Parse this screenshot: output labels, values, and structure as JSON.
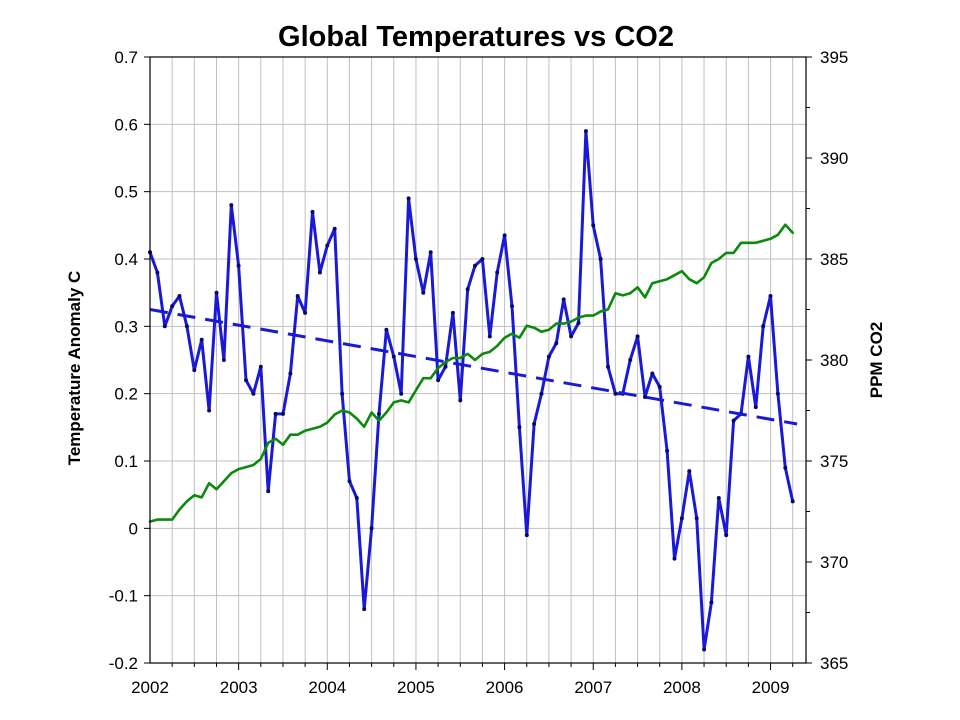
{
  "chart_data": {
    "type": "line",
    "title": "Global Temperatures vs CO2",
    "ylabel_left": "Temperature Anomaly C",
    "ylabel_right": "PPM CO2",
    "xlabel": "",
    "xlim": [
      2002,
      2009.4
    ],
    "ylim_left": [
      -0.2,
      0.7
    ],
    "ylim_right": [
      365,
      395
    ],
    "x_ticks": [
      "2002",
      "2003",
      "2004",
      "2005",
      "2006",
      "2007",
      "2008",
      "2009"
    ],
    "y_left_ticks": [
      "-0.2",
      "-0.1",
      "0",
      "0.1",
      "0.2",
      "0.3",
      "0.4",
      "0.5",
      "0.6",
      "0.7"
    ],
    "y_right_ticks": [
      "365",
      "370",
      "375",
      "380",
      "385",
      "390",
      "395"
    ],
    "grid": true,
    "series": [
      {
        "axis": "left",
        "color": "#1a1ad6",
        "style": "solid-markers",
        "x_start": 2002.0,
        "x_step_months": 1,
        "values": [
          0.41,
          0.38,
          0.3,
          0.33,
          0.345,
          0.3,
          0.235,
          0.28,
          0.175,
          0.35,
          0.25,
          0.48,
          0.39,
          0.22,
          0.2,
          0.24,
          0.055,
          0.17,
          0.17,
          0.23,
          0.345,
          0.32,
          0.47,
          0.38,
          0.42,
          0.445,
          0.2,
          0.07,
          0.045,
          -0.12,
          0.0,
          0.17,
          0.295,
          0.255,
          0.2,
          0.49,
          0.4,
          0.35,
          0.41,
          0.22,
          0.24,
          0.32,
          0.19,
          0.355,
          0.39,
          0.4,
          0.285,
          0.38,
          0.435,
          0.33,
          0.15,
          -0.01,
          0.155,
          0.2,
          0.255,
          0.275,
          0.34,
          0.285,
          0.305,
          0.59,
          0.45,
          0.4,
          0.24,
          0.2,
          0.2,
          0.25,
          0.285,
          0.195,
          0.23,
          0.21,
          0.115,
          -0.045,
          0.015,
          0.085,
          0.015,
          -0.18,
          -0.11,
          0.045,
          -0.01,
          0.16,
          0.17,
          0.255,
          0.18,
          0.3,
          0.345,
          0.2,
          0.09,
          0.04
        ]
      },
      {
        "axis": "right",
        "color": "#0c8a0c",
        "style": "solid",
        "x_start": 2002.0,
        "x_step_months": 1,
        "values": [
          372.0,
          372.1,
          372.1,
          372.1,
          372.6,
          373.0,
          373.3,
          373.2,
          373.9,
          373.6,
          374.0,
          374.4,
          374.6,
          374.7,
          374.8,
          375.1,
          375.9,
          376.1,
          375.8,
          376.3,
          376.3,
          376.5,
          376.6,
          376.7,
          376.9,
          377.3,
          377.5,
          377.4,
          377.1,
          376.7,
          377.4,
          377.0,
          377.4,
          377.9,
          378.0,
          377.9,
          378.5,
          379.1,
          379.1,
          379.6,
          379.9,
          380.1,
          380.1,
          380.3,
          380.0,
          380.3,
          380.4,
          380.7,
          381.1,
          381.3,
          381.1,
          381.7,
          381.6,
          381.4,
          381.5,
          381.8,
          381.8,
          381.9,
          382.1,
          382.2,
          382.2,
          382.4,
          382.5,
          383.3,
          383.2,
          383.3,
          383.6,
          383.1,
          383.8,
          383.9,
          384.0,
          384.2,
          384.4,
          384.0,
          383.8,
          384.1,
          384.8,
          385.0,
          385.3,
          385.3,
          385.8,
          385.8,
          385.8,
          385.9,
          386.0,
          386.2,
          386.7,
          386.3
        ]
      },
      {
        "axis": "left",
        "color": "#1a1ad6",
        "style": "dashed",
        "x": [
          2002.0,
          2009.3
        ],
        "values": [
          0.325,
          0.155
        ]
      }
    ]
  }
}
